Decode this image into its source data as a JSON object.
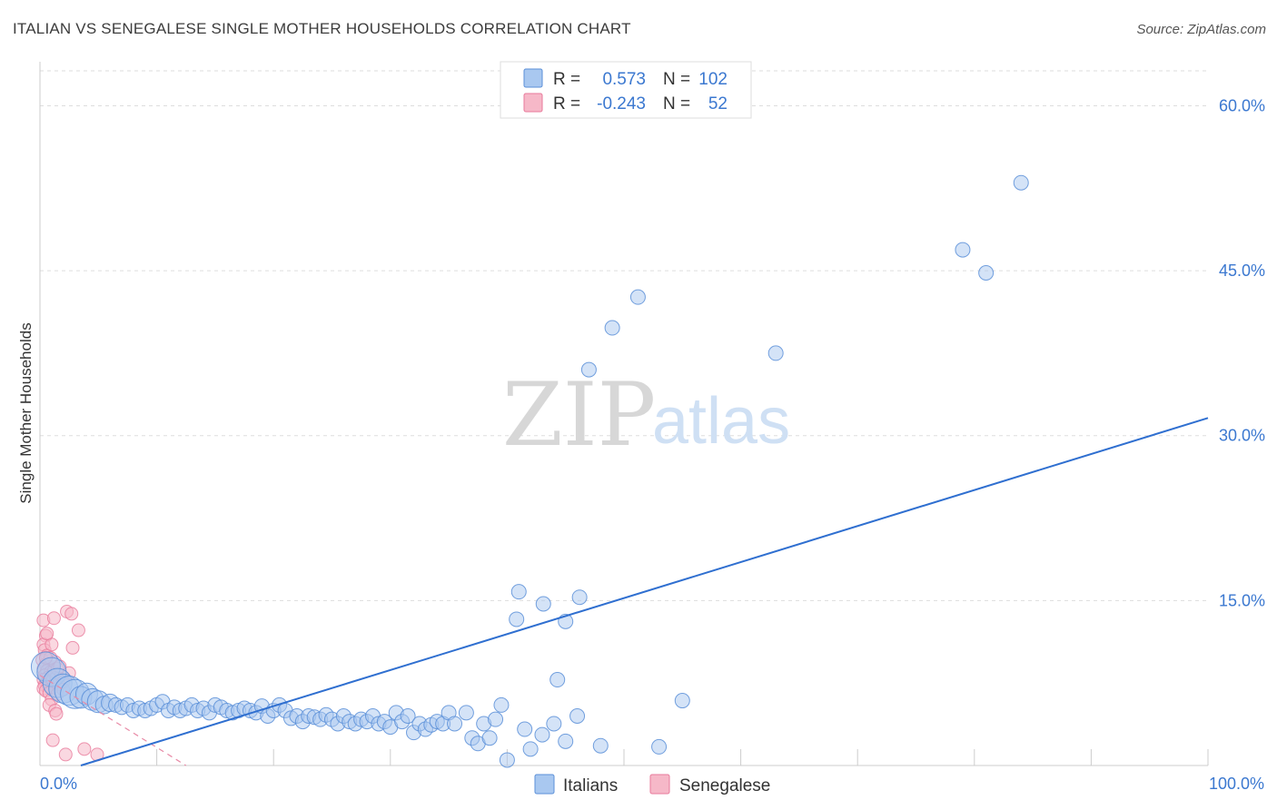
{
  "header": {
    "title": "ITALIAN VS SENEGALESE SINGLE MOTHER HOUSEHOLDS CORRELATION CHART",
    "source": "Source: ZipAtlas.com"
  },
  "colors": {
    "italians_fill": "#a9c8f0",
    "italians_stroke": "#5b8fd8",
    "italians_line": "#2f6fd0",
    "senegalese_fill": "#f6b8c8",
    "senegalese_stroke": "#e87a9b",
    "senegalese_line": "#e88aa6",
    "grid": "#dddddd",
    "axis_text": "#3b78d0"
  },
  "watermark": {
    "zip": "ZIP",
    "atlas": "atlas"
  },
  "legend": {
    "rows": [
      {
        "series": "Italians",
        "r_label": "R =",
        "r_value": "0.573",
        "n_label": "N =",
        "n_value": "102"
      },
      {
        "series": "Senegalese",
        "r_label": "R =",
        "r_value": "-0.243",
        "n_label": "N =",
        "n_value": "52"
      }
    ]
  },
  "chart_data": {
    "type": "scatter",
    "title": "ITALIAN VS SENEGALESE SINGLE MOTHER HOUSEHOLDS CORRELATION CHART",
    "xlabel": "",
    "ylabel": "Single Mother Households",
    "x_unit": "%",
    "xlim": [
      0,
      100
    ],
    "ylim": [
      0,
      64
    ],
    "x_tick_labels": [
      "0.0%",
      "100.0%"
    ],
    "y_ticks": [
      15,
      30,
      45,
      60
    ],
    "y_tick_labels": [
      "15.0%",
      "30.0%",
      "45.0%",
      "60.0%"
    ],
    "grid": true,
    "legend_position": "top-center",
    "bottom_legend": [
      "Italians",
      "Senegalese"
    ],
    "series": [
      {
        "name": "Italians",
        "r": 0.573,
        "n": 102,
        "trend": {
          "x": [
            3.5,
            100
          ],
          "y": [
            0,
            31.6
          ]
        },
        "points": [
          [
            0.5,
            9.0,
            2
          ],
          [
            1.0,
            8.5,
            2
          ],
          [
            1.5,
            7.5,
            2
          ],
          [
            2.0,
            7.0,
            2
          ],
          [
            2.5,
            6.8,
            2
          ],
          [
            3.0,
            6.5,
            2
          ],
          [
            3.5,
            6.2,
            1.5
          ],
          [
            4.0,
            6.5,
            1.5
          ],
          [
            4.5,
            6.0,
            1.5
          ],
          [
            5.0,
            5.8,
            1.5
          ],
          [
            5.5,
            5.5,
            1.2
          ],
          [
            6.0,
            5.7,
            1.2
          ],
          [
            6.5,
            5.5,
            1
          ],
          [
            7.0,
            5.3,
            1
          ],
          [
            7.5,
            5.5,
            1
          ],
          [
            8.0,
            5.0,
            1
          ],
          [
            8.5,
            5.2,
            1
          ],
          [
            9.0,
            5.0,
            1
          ],
          [
            9.5,
            5.2,
            1
          ],
          [
            10.0,
            5.5,
            1
          ],
          [
            10.5,
            5.8,
            1
          ],
          [
            11.0,
            5.0,
            1
          ],
          [
            11.5,
            5.3,
            1
          ],
          [
            12.0,
            5.0,
            1
          ],
          [
            12.5,
            5.2,
            1
          ],
          [
            13.0,
            5.5,
            1
          ],
          [
            13.5,
            5.0,
            1
          ],
          [
            14.0,
            5.2,
            1
          ],
          [
            14.5,
            4.8,
            1
          ],
          [
            15.0,
            5.5,
            1
          ],
          [
            15.5,
            5.3,
            1
          ],
          [
            16.0,
            5.0,
            1
          ],
          [
            16.5,
            4.8,
            1
          ],
          [
            17.0,
            5.0,
            1
          ],
          [
            17.5,
            5.2,
            1
          ],
          [
            18.0,
            5.0,
            1
          ],
          [
            18.5,
            4.8,
            1
          ],
          [
            19.0,
            5.4,
            1
          ],
          [
            19.5,
            4.5,
            1
          ],
          [
            20.0,
            5.0,
            1
          ],
          [
            20.5,
            5.5,
            1
          ],
          [
            21.0,
            5.0,
            1
          ],
          [
            21.5,
            4.3,
            1
          ],
          [
            22.0,
            4.5,
            1
          ],
          [
            22.5,
            4.0,
            1
          ],
          [
            23.0,
            4.5,
            1
          ],
          [
            23.5,
            4.4,
            1
          ],
          [
            24.0,
            4.2,
            1
          ],
          [
            24.5,
            4.6,
            1
          ],
          [
            25.0,
            4.2,
            1
          ],
          [
            25.5,
            3.8,
            1
          ],
          [
            26.0,
            4.5,
            1
          ],
          [
            26.5,
            4.0,
            1
          ],
          [
            27.0,
            3.8,
            1
          ],
          [
            27.5,
            4.2,
            1
          ],
          [
            28.0,
            4.0,
            1
          ],
          [
            28.5,
            4.5,
            1
          ],
          [
            29.0,
            3.8,
            1
          ],
          [
            29.5,
            4.0,
            1
          ],
          [
            30.0,
            3.5,
            1
          ],
          [
            30.5,
            4.8,
            1
          ],
          [
            31.0,
            4.0,
            1
          ],
          [
            31.5,
            4.5,
            1
          ],
          [
            32.0,
            3.0,
            1
          ],
          [
            32.5,
            3.8,
            1
          ],
          [
            33.0,
            3.3,
            1
          ],
          [
            33.5,
            3.7,
            1
          ],
          [
            34.0,
            4.0,
            1
          ],
          [
            34.5,
            3.8,
            1
          ],
          [
            35.0,
            4.8,
            1
          ],
          [
            35.5,
            3.8,
            1
          ],
          [
            37.0,
            2.5,
            1
          ],
          [
            37.5,
            2.0,
            1
          ],
          [
            38.0,
            3.8,
            1
          ],
          [
            38.5,
            2.5,
            1
          ],
          [
            39.0,
            4.2,
            1
          ],
          [
            39.5,
            5.5,
            1
          ],
          [
            40.0,
            0.5,
            1
          ],
          [
            41.5,
            3.3,
            1
          ],
          [
            42.0,
            1.5,
            1
          ],
          [
            43.0,
            2.8,
            1
          ],
          [
            44.0,
            3.8,
            1
          ],
          [
            45.0,
            2.2,
            1
          ],
          [
            46.0,
            4.5,
            1
          ],
          [
            48.0,
            1.8,
            1
          ],
          [
            41.0,
            15.8,
            1
          ],
          [
            40.8,
            13.3,
            1
          ],
          [
            43.1,
            14.7,
            1
          ],
          [
            45.0,
            13.1,
            1
          ],
          [
            46.2,
            15.3,
            1
          ],
          [
            44.3,
            7.8,
            1
          ],
          [
            55.0,
            5.9,
            1
          ],
          [
            53.0,
            1.7,
            1
          ],
          [
            47.0,
            36.0,
            1
          ],
          [
            49.0,
            39.8,
            1
          ],
          [
            51.2,
            42.6,
            1
          ],
          [
            63.0,
            37.5,
            1
          ],
          [
            79.0,
            46.9,
            1
          ],
          [
            81.0,
            44.8,
            1
          ],
          [
            84.0,
            53.0,
            1
          ],
          [
            36.5,
            4.8,
            1
          ]
        ]
      },
      {
        "name": "Senegalese",
        "r": -0.243,
        "n": 52,
        "trend": {
          "x": [
            0,
            12.5
          ],
          "y": [
            8.2,
            0
          ]
        },
        "points": [
          [
            0.3,
            13.2,
            1
          ],
          [
            0.5,
            11.8,
            1
          ],
          [
            0.3,
            11.0,
            1
          ],
          [
            0.4,
            10.5,
            1
          ],
          [
            0.6,
            10.0,
            1
          ],
          [
            0.2,
            9.6,
            1
          ],
          [
            0.5,
            9.2,
            1
          ],
          [
            0.8,
            9.0,
            1
          ],
          [
            0.3,
            8.8,
            1
          ],
          [
            0.6,
            8.6,
            1
          ],
          [
            0.9,
            8.5,
            1
          ],
          [
            0.4,
            8.2,
            1
          ],
          [
            0.7,
            8.0,
            1
          ],
          [
            1.0,
            8.0,
            1
          ],
          [
            0.3,
            7.8,
            1
          ],
          [
            0.6,
            7.6,
            1
          ],
          [
            0.9,
            7.5,
            1
          ],
          [
            0.4,
            7.3,
            1
          ],
          [
            0.7,
            7.2,
            1
          ],
          [
            1.0,
            7.0,
            1
          ],
          [
            0.3,
            7.0,
            1
          ],
          [
            0.5,
            6.8,
            1
          ],
          [
            0.8,
            6.6,
            1
          ],
          [
            1.1,
            7.8,
            1
          ],
          [
            1.2,
            8.6,
            1
          ],
          [
            1.4,
            8.0,
            1
          ],
          [
            1.6,
            7.4,
            1
          ],
          [
            1.8,
            8.2,
            1
          ],
          [
            2.0,
            7.6,
            1
          ],
          [
            1.3,
            9.4,
            1
          ],
          [
            1.5,
            8.8,
            1
          ],
          [
            0.9,
            9.8,
            1
          ],
          [
            1.0,
            11.0,
            1
          ],
          [
            0.6,
            12.0,
            1
          ],
          [
            1.2,
            13.4,
            1
          ],
          [
            2.3,
            14.0,
            1
          ],
          [
            2.7,
            13.8,
            1
          ],
          [
            3.3,
            12.3,
            1
          ],
          [
            2.8,
            10.7,
            1
          ],
          [
            1.0,
            6.0,
            1
          ],
          [
            0.8,
            5.5,
            1
          ],
          [
            1.3,
            5.0,
            1
          ],
          [
            1.4,
            4.7,
            1
          ],
          [
            1.1,
            2.3,
            1
          ],
          [
            2.2,
            1.0,
            1
          ],
          [
            3.8,
            1.5,
            1
          ],
          [
            4.9,
            1.0,
            1
          ],
          [
            1.5,
            6.5,
            1
          ],
          [
            2.0,
            6.9,
            1
          ],
          [
            1.7,
            9.0,
            1
          ],
          [
            0.5,
            9.8,
            1
          ],
          [
            2.5,
            8.4,
            1
          ]
        ]
      }
    ]
  }
}
